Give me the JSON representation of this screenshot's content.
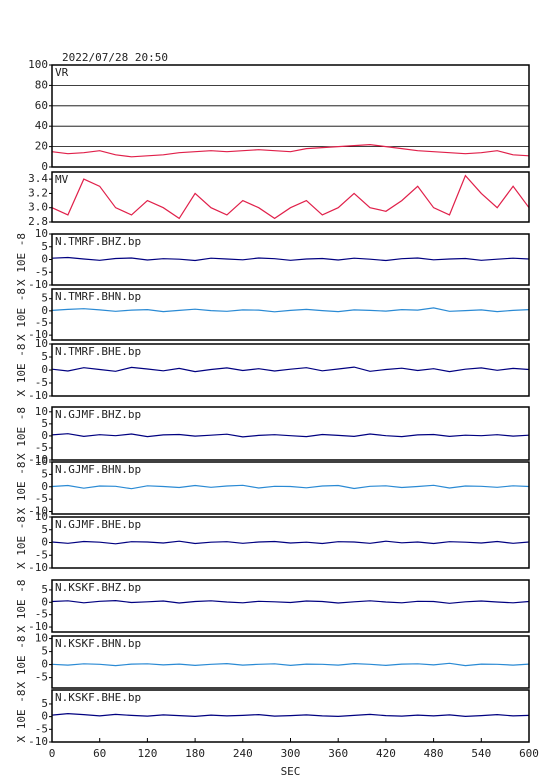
{
  "chart_data": [
    {
      "type": "line",
      "title": "2022/07/28 20:50",
      "xlim": [
        0,
        600
      ],
      "ylim": [
        0,
        100
      ],
      "yticks": [
        0,
        20,
        40,
        60,
        80,
        100
      ],
      "grid": true,
      "x": [
        0,
        20,
        40,
        60,
        80,
        100,
        120,
        140,
        160,
        180,
        200,
        220,
        240,
        260,
        280,
        300,
        320,
        340,
        360,
        380,
        400,
        420,
        440,
        460,
        480,
        500,
        520,
        540,
        560,
        580,
        600
      ],
      "series": [
        {
          "name": "VR",
          "color": "#e0204a",
          "values": [
            15,
            13,
            14,
            16,
            12,
            10,
            11,
            12,
            14,
            15,
            16,
            15,
            16,
            17,
            16,
            15,
            18,
            19,
            20,
            21,
            22,
            20,
            18,
            16,
            15,
            14,
            13,
            14,
            16,
            12,
            11
          ]
        }
      ]
    },
    {
      "type": "line",
      "xlim": [
        0,
        600
      ],
      "ylim": [
        2.8,
        3.5
      ],
      "yticks": [
        2.8,
        {
          "value": 3,
          "label": "3.0"
        },
        3.2,
        3.4
      ],
      "grid": false,
      "x": [
        0,
        20,
        40,
        60,
        80,
        100,
        120,
        140,
        160,
        180,
        200,
        220,
        240,
        260,
        280,
        300,
        320,
        340,
        360,
        380,
        400,
        420,
        440,
        460,
        480,
        500,
        520,
        540,
        560,
        580,
        600
      ],
      "series": [
        {
          "name": "MV",
          "color": "#e0204a",
          "values": [
            3.0,
            2.9,
            3.4,
            3.3,
            3.0,
            2.9,
            3.1,
            3.0,
            2.85,
            3.2,
            3.0,
            2.9,
            3.1,
            3.0,
            2.85,
            3.0,
            3.1,
            2.9,
            3.0,
            3.2,
            3.0,
            2.95,
            3.1,
            3.3,
            3.0,
            2.9,
            3.45,
            3.2,
            3.0,
            3.3,
            3.0
          ]
        }
      ]
    },
    {
      "type": "line",
      "ylabel": "X 10E -8",
      "xlim": [
        0,
        600
      ],
      "ylim": [
        -10,
        10
      ],
      "yticks": [
        -10,
        -5,
        0,
        5,
        10
      ],
      "grid": false,
      "x": [
        0,
        20,
        40,
        60,
        80,
        100,
        120,
        140,
        160,
        180,
        200,
        220,
        240,
        260,
        280,
        300,
        320,
        340,
        360,
        380,
        400,
        420,
        440,
        460,
        480,
        500,
        520,
        540,
        560,
        580,
        600
      ],
      "series": [
        {
          "name": "N.TMRF.BHZ.bp",
          "color": "#000080",
          "values": [
            0.5,
            0.8,
            0.2,
            -0.3,
            0.4,
            0.6,
            -0.2,
            0.3,
            0.1,
            -0.4,
            0.5,
            0.2,
            -0.1,
            0.6,
            0.3,
            -0.3,
            0.2,
            0.4,
            -0.2,
            0.5,
            0.1,
            -0.4,
            0.3,
            0.6,
            -0.1,
            0.2,
            0.4,
            -0.3,
            0.1,
            0.5,
            0.2
          ]
        }
      ]
    },
    {
      "type": "line",
      "ylabel": "X 10E -8",
      "xlim": [
        0,
        600
      ],
      "ylim": [
        -12,
        9
      ],
      "yticks": [
        -10,
        -5,
        0,
        5
      ],
      "grid": false,
      "x": [
        0,
        20,
        40,
        60,
        80,
        100,
        120,
        140,
        160,
        180,
        200,
        220,
        240,
        260,
        280,
        300,
        320,
        340,
        360,
        380,
        400,
        420,
        440,
        460,
        480,
        500,
        520,
        540,
        560,
        580,
        600
      ],
      "series": [
        {
          "name": "N.TMRF.BHN.bp",
          "color": "#2a8ad4",
          "values": [
            0.2,
            0.6,
            0.9,
            0.4,
            -0.2,
            0.3,
            0.5,
            -0.3,
            0.2,
            0.7,
            0.1,
            -0.2,
            0.4,
            0.3,
            -0.4,
            0.2,
            0.6,
            0.1,
            -0.3,
            0.4,
            0.2,
            -0.1,
            0.5,
            0.3,
            1.2,
            -0.2,
            0.1,
            0.4,
            -0.3,
            0.2,
            0.5
          ]
        }
      ]
    },
    {
      "type": "line",
      "ylabel": "X 10E -8",
      "xlim": [
        0,
        600
      ],
      "ylim": [
        -10,
        10
      ],
      "yticks": [
        -10,
        -5,
        0,
        5,
        10
      ],
      "grid": false,
      "x": [
        0,
        20,
        40,
        60,
        80,
        100,
        120,
        140,
        160,
        180,
        200,
        220,
        240,
        260,
        280,
        300,
        320,
        340,
        360,
        380,
        400,
        420,
        440,
        460,
        480,
        500,
        520,
        540,
        560,
        580,
        600
      ],
      "series": [
        {
          "name": "N.TMRF.BHE.bp",
          "color": "#000080",
          "values": [
            0.3,
            -0.4,
            0.9,
            0.2,
            -0.5,
            1.0,
            0.4,
            -0.3,
            0.6,
            -0.6,
            0.2,
            0.8,
            -0.2,
            0.5,
            -0.4,
            0.3,
            0.9,
            -0.3,
            0.4,
            1.1,
            -0.5,
            0.2,
            0.7,
            -0.2,
            0.5,
            -0.6,
            0.3,
            0.8,
            -0.1,
            0.6,
            0.2
          ]
        }
      ]
    },
    {
      "type": "line",
      "ylabel": "X 10E -8",
      "xlim": [
        0,
        600
      ],
      "ylim": [
        -10,
        12
      ],
      "yticks": [
        -10,
        -5,
        0,
        5,
        10
      ],
      "grid": false,
      "x": [
        0,
        20,
        40,
        60,
        80,
        100,
        120,
        140,
        160,
        180,
        200,
        220,
        240,
        260,
        280,
        300,
        320,
        340,
        360,
        380,
        400,
        420,
        440,
        460,
        480,
        500,
        520,
        540,
        560,
        580,
        600
      ],
      "series": [
        {
          "name": "N.GJMF.BHZ.bp",
          "color": "#000080",
          "values": [
            0.4,
            0.9,
            -0.2,
            0.5,
            0.1,
            0.8,
            -0.3,
            0.4,
            0.6,
            -0.1,
            0.3,
            0.7,
            -0.4,
            0.2,
            0.5,
            0.1,
            -0.3,
            0.6,
            0.2,
            -0.2,
            0.8,
            0.1,
            -0.3,
            0.4,
            0.6,
            -0.2,
            0.3,
            0.1,
            0.5,
            -0.1,
            0.3
          ]
        }
      ]
    },
    {
      "type": "line",
      "ylabel": "X 10E -8",
      "xlim": [
        0,
        600
      ],
      "ylim": [
        -11,
        10
      ],
      "yticks": [
        -10,
        -5,
        0,
        5,
        10
      ],
      "grid": false,
      "x": [
        0,
        20,
        40,
        60,
        80,
        100,
        120,
        140,
        160,
        180,
        200,
        220,
        240,
        260,
        280,
        300,
        320,
        340,
        360,
        380,
        400,
        420,
        440,
        460,
        480,
        500,
        520,
        540,
        560,
        580,
        600
      ],
      "series": [
        {
          "name": "N.GJMF.BHN.bp",
          "color": "#2a8ad4",
          "values": [
            0.1,
            0.5,
            -0.6,
            0.3,
            0.2,
            -0.8,
            0.4,
            0.1,
            -0.3,
            0.5,
            -0.2,
            0.3,
            0.6,
            -0.5,
            0.2,
            0.1,
            -0.4,
            0.3,
            0.5,
            -0.7,
            0.2,
            0.4,
            -0.3,
            0.1,
            0.6,
            -0.5,
            0.3,
            0.2,
            -0.2,
            0.4,
            0.1
          ]
        }
      ]
    },
    {
      "type": "line",
      "ylabel": "X 10E -8",
      "xlim": [
        0,
        600
      ],
      "ylim": [
        -10,
        10
      ],
      "yticks": [
        -10,
        -5,
        0,
        5,
        10
      ],
      "grid": false,
      "x": [
        0,
        20,
        40,
        60,
        80,
        100,
        120,
        140,
        160,
        180,
        200,
        220,
        240,
        260,
        280,
        300,
        320,
        340,
        360,
        380,
        400,
        420,
        440,
        460,
        480,
        500,
        520,
        540,
        560,
        580,
        600
      ],
      "series": [
        {
          "name": "N.GJMF.BHE.bp",
          "color": "#000080",
          "values": [
            0.2,
            -0.3,
            0.4,
            0.1,
            -0.5,
            0.3,
            0.2,
            -0.2,
            0.5,
            -0.4,
            0.1,
            0.3,
            -0.3,
            0.2,
            0.4,
            -0.2,
            0.1,
            -0.4,
            0.3,
            0.2,
            -0.3,
            0.5,
            -0.1,
            0.2,
            -0.4,
            0.3,
            0.1,
            -0.2,
            0.4,
            -0.3,
            0.2
          ]
        }
      ]
    },
    {
      "type": "line",
      "ylabel": "X 10E -8",
      "xlim": [
        0,
        600
      ],
      "ylim": [
        -12,
        9
      ],
      "yticks": [
        -10,
        -5,
        0,
        5
      ],
      "grid": false,
      "x": [
        0,
        20,
        40,
        60,
        80,
        100,
        120,
        140,
        160,
        180,
        200,
        220,
        240,
        260,
        280,
        300,
        320,
        340,
        360,
        380,
        400,
        420,
        440,
        460,
        480,
        500,
        520,
        540,
        560,
        580,
        600
      ],
      "series": [
        {
          "name": "N.KSKF.BHZ.bp",
          "color": "#000080",
          "values": [
            0.3,
            0.6,
            -0.2,
            0.4,
            0.7,
            -0.1,
            0.2,
            0.5,
            -0.3,
            0.3,
            0.6,
            0.1,
            -0.2,
            0.4,
            0.2,
            -0.1,
            0.5,
            0.3,
            -0.3,
            0.2,
            0.6,
            0.1,
            -0.2,
            0.4,
            0.3,
            -0.4,
            0.2,
            0.5,
            0.1,
            -0.2,
            0.3
          ]
        }
      ]
    },
    {
      "type": "line",
      "ylabel": "X 10E -8",
      "xlim": [
        0,
        600
      ],
      "ylim": [
        -9,
        11
      ],
      "yticks": [
        -5,
        0,
        5,
        10
      ],
      "grid": false,
      "x": [
        0,
        20,
        40,
        60,
        80,
        100,
        120,
        140,
        160,
        180,
        200,
        220,
        240,
        260,
        280,
        300,
        320,
        340,
        360,
        380,
        400,
        420,
        440,
        460,
        480,
        500,
        520,
        540,
        560,
        580,
        600
      ],
      "series": [
        {
          "name": "N.KSKF.BHN.bp",
          "color": "#2a8ad4",
          "values": [
            0.1,
            -0.2,
            0.3,
            0.1,
            -0.4,
            0.2,
            0.3,
            -0.1,
            0.2,
            -0.3,
            0.1,
            0.4,
            -0.2,
            0.1,
            0.3,
            -0.3,
            0.2,
            0.1,
            -0.2,
            0.4,
            0.1,
            -0.3,
            0.2,
            0.3,
            -0.1,
            0.5,
            -0.4,
            0.2,
            0.1,
            -0.2,
            0.2
          ]
        }
      ]
    },
    {
      "type": "line",
      "ylabel": "X 10E -8",
      "xlabel": "SEC",
      "xlim": [
        0,
        600
      ],
      "ylim": [
        -10,
        10.5
      ],
      "yticks": [
        -10,
        -5,
        0,
        5
      ],
      "xticks": [
        0,
        60,
        120,
        180,
        240,
        300,
        360,
        420,
        480,
        540,
        600
      ],
      "grid": false,
      "x": [
        0,
        20,
        40,
        60,
        80,
        100,
        120,
        140,
        160,
        180,
        200,
        220,
        240,
        260,
        280,
        300,
        320,
        340,
        360,
        380,
        400,
        420,
        440,
        460,
        480,
        500,
        520,
        540,
        560,
        580,
        600
      ],
      "series": [
        {
          "name": "N.KSKF.BHE.bp",
          "color": "#000080",
          "values": [
            0.6,
            1.2,
            0.8,
            0.3,
            0.9,
            0.5,
            0.2,
            0.7,
            0.4,
            0.1,
            0.6,
            0.3,
            0.5,
            0.8,
            0.2,
            0.4,
            0.7,
            0.3,
            0.1,
            0.5,
            0.9,
            0.4,
            0.2,
            0.6,
            0.3,
            0.7,
            0.1,
            0.4,
            0.8,
            0.3,
            0.5
          ]
        }
      ]
    }
  ]
}
